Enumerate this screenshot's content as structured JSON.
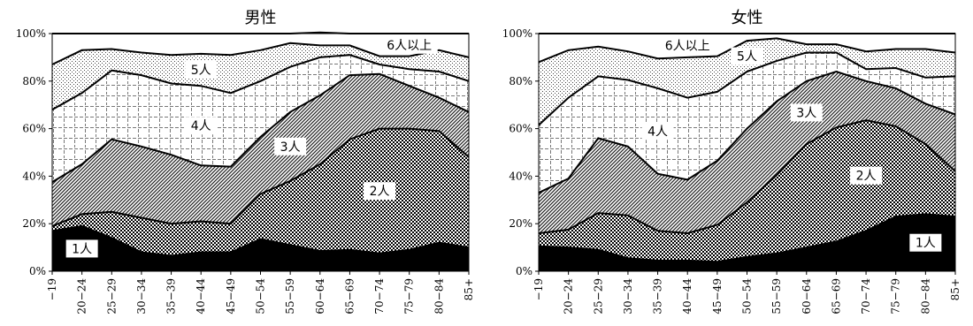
{
  "chart_data": [
    {
      "type": "area",
      "stacked": true,
      "title": "男性",
      "categories": [
        "−19",
        "20−24",
        "25−29",
        "30−34",
        "35−39",
        "40−44",
        "45−49",
        "50−54",
        "55−59",
        "60−64",
        "65−69",
        "70−74",
        "75−79",
        "80−84",
        "85+"
      ],
      "ylim": [
        0,
        100
      ],
      "ytick_labels": [
        "0%",
        "20%",
        "40%",
        "60%",
        "80%",
        "100%"
      ],
      "series": [
        {
          "name": "1人",
          "values": [
            17,
            19,
            14,
            8,
            6.5,
            8,
            8,
            13.5,
            11,
            8.5,
            9,
            7.5,
            9,
            12,
            10
          ]
        },
        {
          "name": "2人",
          "values": [
            2,
            5,
            11,
            14.5,
            13.5,
            13,
            12,
            19,
            27,
            36.5,
            46.5,
            52.5,
            51,
            47,
            38
          ]
        },
        {
          "name": "3人",
          "values": [
            18.5,
            21,
            30.5,
            30,
            29,
            23.5,
            24,
            24,
            29,
            29,
            27,
            23,
            18,
            14,
            19
          ]
        },
        {
          "name": "4人",
          "values": [
            30.5,
            30,
            29,
            30,
            30,
            33.5,
            31,
            23.5,
            19,
            16,
            8.5,
            4,
            7,
            11,
            13
          ]
        },
        {
          "name": "5人",
          "values": [
            19,
            18,
            9,
            9.5,
            12,
            13.5,
            16,
            13,
            10,
            5,
            4,
            3.5,
            5.5,
            9,
            10
          ]
        },
        {
          "name": "6人以上",
          "values": [
            13,
            7,
            6.5,
            8,
            9,
            8.5,
            9,
            7,
            4,
            5.5,
            5,
            9.5,
            9.5,
            7,
            10
          ]
        }
      ]
    },
    {
      "type": "area",
      "stacked": true,
      "title": "女性",
      "categories": [
        "−19",
        "20−24",
        "25−29",
        "30−34",
        "35−39",
        "40−44",
        "45−49",
        "50−54",
        "55−59",
        "60−64",
        "65−69",
        "70−74",
        "75−79",
        "80−84",
        "85+"
      ],
      "ylim": [
        0,
        100
      ],
      "ytick_labels": [
        "0%",
        "20%",
        "40%",
        "60%",
        "80%",
        "100%"
      ],
      "series": [
        {
          "name": "1人",
          "values": [
            10.5,
            10,
            9,
            5.5,
            4.5,
            4.5,
            4,
            6,
            7.5,
            10,
            12.5,
            17,
            23,
            24,
            23
          ]
        },
        {
          "name": "2人",
          "values": [
            5.5,
            7.5,
            15.5,
            18,
            12.5,
            11.5,
            15.5,
            23,
            33,
            43.5,
            48,
            46.5,
            38,
            29.5,
            19
          ]
        },
        {
          "name": "3人",
          "values": [
            17,
            21.5,
            31.5,
            29,
            24,
            22.5,
            27,
            31,
            31,
            26.5,
            23.5,
            16.5,
            16,
            17,
            24
          ]
        },
        {
          "name": "4人",
          "values": [
            28.5,
            34,
            26,
            28,
            36,
            34.5,
            29,
            24,
            17,
            12,
            8,
            5,
            8.5,
            11,
            16
          ]
        },
        {
          "name": "5人",
          "values": [
            26.5,
            20,
            12.5,
            12,
            12.5,
            17,
            15,
            13,
            9.5,
            3.5,
            3.5,
            7.5,
            8,
            12,
            10
          ]
        },
        {
          "name": "6人以上",
          "values": [
            12,
            7,
            5.5,
            7.5,
            10.5,
            10,
            9.5,
            3,
            2,
            4.5,
            4.5,
            7.5,
            6.5,
            6.5,
            8
          ]
        }
      ]
    }
  ]
}
